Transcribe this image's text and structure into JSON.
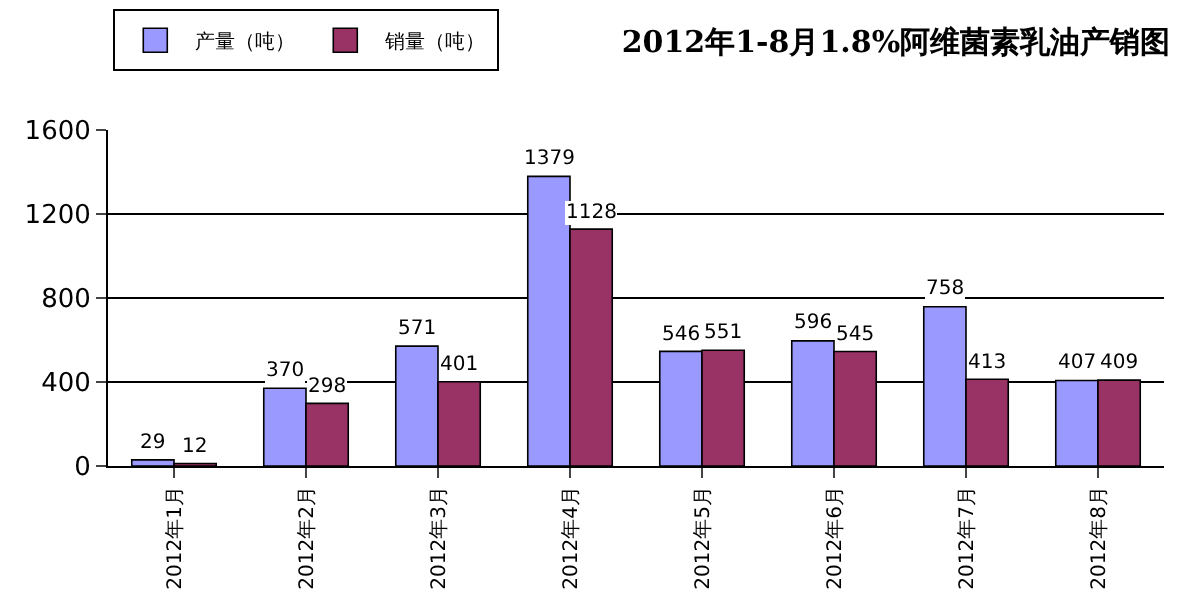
{
  "chart_data": {
    "type": "bar",
    "title": "2012年1-8月1.8%阿维菌素乳油产销图",
    "categories": [
      "2012年1月",
      "2012年2月",
      "2012年3月",
      "2012年4月",
      "2012年5月",
      "2012年6月",
      "2012年7月",
      "2012年8月"
    ],
    "series": [
      {
        "name": "产量（吨）",
        "color": "#9999ff",
        "values": [
          29,
          370,
          571,
          1379,
          546,
          596,
          758,
          407
        ]
      },
      {
        "name": "销量（吨）",
        "color": "#993366",
        "values": [
          12,
          298,
          401,
          1128,
          551,
          545,
          413,
          409
        ]
      }
    ],
    "ylim": [
      0,
      1600
    ],
    "yticks": [
      0,
      400,
      800,
      1200,
      1600
    ],
    "grid": "y",
    "legend": "top left",
    "data_labels": true
  }
}
